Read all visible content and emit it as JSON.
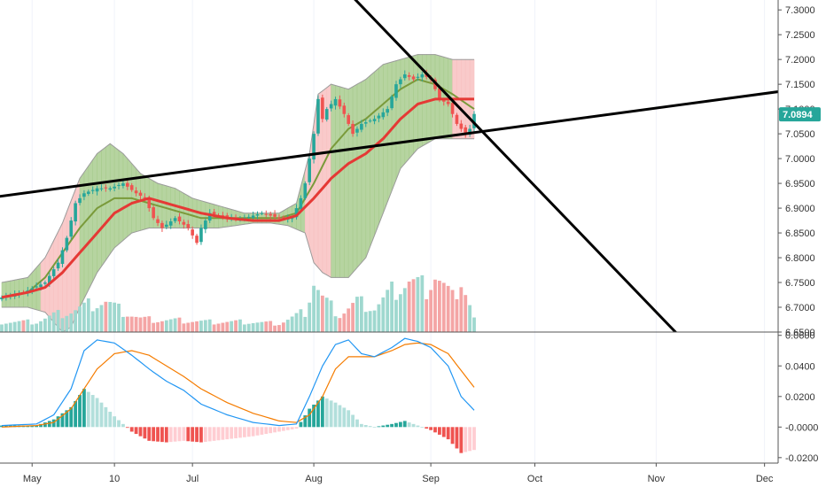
{
  "colors": {
    "up": "#26a69a",
    "down": "#ef5350",
    "up_volume": "#9fd8cf",
    "down_volume": "#f4a5a5",
    "ma": "#e53935",
    "basis": "#7a9a3a",
    "bands_stroke": "#9c9c9c",
    "band_fill_expand": "#f8c1c1",
    "band_fill_contract": "#a9cc8f",
    "macd": "#2196f3",
    "signal": "#f57c00",
    "hist_up_strong": "#26a69a",
    "hist_up_weak": "#b2dfdb",
    "hist_down_strong": "#ef5350",
    "hist_down_weak": "#ffcdd2",
    "trendline": "#000000",
    "price_badge": "#26a69a"
  },
  "price_axis": {
    "ticks": [
      "7.3000",
      "7.2500",
      "7.2000",
      "7.1500",
      "7.1000",
      "7.0500",
      "7.0000",
      "6.9500",
      "6.9000",
      "6.8500",
      "6.8000",
      "6.7500",
      "6.7000",
      "6.6500"
    ],
    "current_price": "7.0894"
  },
  "macd_axis": {
    "ticks": [
      "0.0600",
      "0.0400",
      "0.0200",
      "-0.0000",
      "-0.0200"
    ]
  },
  "time_axis": {
    "labels": [
      "May",
      "10",
      "Jul",
      "Aug",
      "Sep",
      "Oct",
      "Nov",
      "Dec"
    ]
  },
  "chart_data": [
    {
      "type": "candlestick",
      "title": "",
      "ylim": [
        6.65,
        7.32
      ],
      "x_range_bars": [
        0,
        152
      ],
      "x_label_positions": [
        {
          "label": "May",
          "bar": 7
        },
        {
          "label": "10",
          "bar": 26
        },
        {
          "label": "Jul",
          "bar": 44
        },
        {
          "label": "Aug",
          "bar": 72
        },
        {
          "label": "Sep",
          "bar": 99
        },
        {
          "label": "Oct",
          "bar": 123
        },
        {
          "label": "Nov",
          "bar": 151
        },
        {
          "label": "Dec",
          "bar": 176
        }
      ],
      "anchors": {
        "close": [
          [
            0,
            6.72
          ],
          [
            5,
            6.73
          ],
          [
            10,
            6.75
          ],
          [
            13,
            6.79
          ],
          [
            15,
            6.84
          ],
          [
            17,
            6.91
          ],
          [
            19,
            6.93
          ],
          [
            22,
            6.94
          ],
          [
            25,
            6.94
          ],
          [
            28,
            6.95
          ],
          [
            31,
            6.93
          ],
          [
            33,
            6.92
          ],
          [
            35,
            6.88
          ],
          [
            37,
            6.86
          ],
          [
            40,
            6.88
          ],
          [
            43,
            6.86
          ],
          [
            45,
            6.83
          ],
          [
            46,
            6.86
          ],
          [
            48,
            6.89
          ],
          [
            52,
            6.88
          ],
          [
            56,
            6.88
          ],
          [
            60,
            6.89
          ],
          [
            64,
            6.88
          ],
          [
            67,
            6.88
          ],
          [
            69,
            6.92
          ],
          [
            70,
            6.95
          ],
          [
            71,
            7.0
          ],
          [
            72,
            7.05
          ],
          [
            73,
            7.12
          ],
          [
            74,
            7.08
          ],
          [
            75,
            7.1
          ],
          [
            77,
            7.12
          ],
          [
            79,
            7.09
          ],
          [
            81,
            7.05
          ],
          [
            83,
            7.07
          ],
          [
            86,
            7.08
          ],
          [
            89,
            7.1
          ],
          [
            91,
            7.15
          ],
          [
            93,
            7.17
          ],
          [
            95,
            7.16
          ],
          [
            97,
            7.17
          ],
          [
            99,
            7.16
          ],
          [
            101,
            7.12
          ],
          [
            103,
            7.11
          ],
          [
            105,
            7.07
          ],
          [
            107,
            7.05
          ],
          [
            108,
            7.06
          ],
          [
            109,
            7.09
          ]
        ],
        "ma": [
          [
            0,
            6.72
          ],
          [
            6,
            6.73
          ],
          [
            10,
            6.74
          ],
          [
            14,
            6.77
          ],
          [
            18,
            6.81
          ],
          [
            22,
            6.85
          ],
          [
            26,
            6.89
          ],
          [
            30,
            6.91
          ],
          [
            34,
            6.92
          ],
          [
            38,
            6.91
          ],
          [
            42,
            6.9
          ],
          [
            46,
            6.89
          ],
          [
            52,
            6.88
          ],
          [
            58,
            6.875
          ],
          [
            64,
            6.875
          ],
          [
            68,
            6.885
          ],
          [
            72,
            6.92
          ],
          [
            76,
            6.96
          ],
          [
            80,
            6.99
          ],
          [
            84,
            7.01
          ],
          [
            88,
            7.04
          ],
          [
            92,
            7.08
          ],
          [
            96,
            7.11
          ],
          [
            100,
            7.12
          ],
          [
            104,
            7.12
          ],
          [
            109,
            7.12
          ]
        ],
        "basis": [
          [
            0,
            6.72
          ],
          [
            6,
            6.73
          ],
          [
            10,
            6.76
          ],
          [
            14,
            6.81
          ],
          [
            18,
            6.86
          ],
          [
            22,
            6.9
          ],
          [
            26,
            6.92
          ],
          [
            30,
            6.92
          ],
          [
            34,
            6.91
          ],
          [
            38,
            6.9
          ],
          [
            42,
            6.89
          ],
          [
            46,
            6.88
          ],
          [
            52,
            6.88
          ],
          [
            58,
            6.88
          ],
          [
            64,
            6.88
          ],
          [
            68,
            6.89
          ],
          [
            72,
            6.95
          ],
          [
            76,
            7.02
          ],
          [
            80,
            7.06
          ],
          [
            84,
            7.08
          ],
          [
            88,
            7.11
          ],
          [
            92,
            7.14
          ],
          [
            96,
            7.16
          ],
          [
            100,
            7.15
          ],
          [
            104,
            7.13
          ],
          [
            109,
            7.1
          ]
        ],
        "upper": [
          [
            0,
            6.75
          ],
          [
            6,
            6.76
          ],
          [
            10,
            6.8
          ],
          [
            14,
            6.87
          ],
          [
            18,
            6.96
          ],
          [
            22,
            7.01
          ],
          [
            25,
            7.03
          ],
          [
            28,
            7.01
          ],
          [
            32,
            6.97
          ],
          [
            36,
            6.95
          ],
          [
            40,
            6.94
          ],
          [
            44,
            6.92
          ],
          [
            48,
            6.91
          ],
          [
            52,
            6.9
          ],
          [
            56,
            6.89
          ],
          [
            60,
            6.89
          ],
          [
            64,
            6.89
          ],
          [
            68,
            6.91
          ],
          [
            71,
            7.01
          ],
          [
            73,
            7.13
          ],
          [
            76,
            7.15
          ],
          [
            80,
            7.14
          ],
          [
            84,
            7.16
          ],
          [
            88,
            7.19
          ],
          [
            92,
            7.2
          ],
          [
            96,
            7.21
          ],
          [
            100,
            7.21
          ],
          [
            104,
            7.2
          ],
          [
            109,
            7.2
          ]
        ],
        "lower": [
          [
            0,
            6.7
          ],
          [
            6,
            6.7
          ],
          [
            10,
            6.69
          ],
          [
            12,
            6.67
          ],
          [
            14,
            6.65
          ],
          [
            16,
            6.66
          ],
          [
            18,
            6.7
          ],
          [
            22,
            6.77
          ],
          [
            26,
            6.82
          ],
          [
            30,
            6.85
          ],
          [
            34,
            6.86
          ],
          [
            38,
            6.86
          ],
          [
            42,
            6.86
          ],
          [
            46,
            6.86
          ],
          [
            50,
            6.86
          ],
          [
            54,
            6.865
          ],
          [
            58,
            6.87
          ],
          [
            62,
            6.87
          ],
          [
            66,
            6.865
          ],
          [
            70,
            6.85
          ],
          [
            72,
            6.79
          ],
          [
            74,
            6.77
          ],
          [
            76,
            6.76
          ],
          [
            80,
            6.76
          ],
          [
            84,
            6.8
          ],
          [
            88,
            6.89
          ],
          [
            92,
            6.98
          ],
          [
            96,
            7.02
          ],
          [
            100,
            7.04
          ],
          [
            104,
            7.04
          ],
          [
            109,
            7.04
          ]
        ],
        "volume_units": [
          [
            0,
            0.3
          ],
          [
            8,
            0.3
          ],
          [
            12,
            0.5
          ],
          [
            16,
            0.6
          ],
          [
            20,
            0.8
          ],
          [
            24,
            0.9
          ],
          [
            28,
            0.6
          ],
          [
            32,
            0.4
          ],
          [
            36,
            0.35
          ],
          [
            40,
            0.35
          ],
          [
            48,
            0.3
          ],
          [
            56,
            0.3
          ],
          [
            64,
            0.25
          ],
          [
            70,
            0.6
          ],
          [
            72,
            1.5
          ],
          [
            74,
            1.0
          ],
          [
            78,
            0.5
          ],
          [
            82,
            0.9
          ],
          [
            86,
            0.7
          ],
          [
            90,
            1.2
          ],
          [
            94,
            1.5
          ],
          [
            98,
            1.3
          ],
          [
            100,
            1.7
          ],
          [
            104,
            1.0
          ],
          [
            106,
            1.6
          ],
          [
            109,
            0.4
          ]
        ]
      },
      "drawn_lines": [
        {
          "name": "rising-trendline",
          "from": {
            "bar": -2,
            "price": 6.922
          },
          "to": {
            "bar": 180,
            "price": 7.136
          }
        },
        {
          "name": "falling-trendline",
          "from": {
            "bar": 80,
            "price": 7.335
          },
          "to": {
            "bar": 156,
            "price": 6.645
          }
        }
      ]
    },
    {
      "type": "macd",
      "ylim": [
        -0.023,
        0.061
      ],
      "anchors": {
        "macd": [
          [
            0,
            0.001
          ],
          [
            8,
            0.002
          ],
          [
            12,
            0.008
          ],
          [
            16,
            0.025
          ],
          [
            19,
            0.05
          ],
          [
            22,
            0.057
          ],
          [
            26,
            0.055
          ],
          [
            30,
            0.047
          ],
          [
            34,
            0.038
          ],
          [
            38,
            0.03
          ],
          [
            42,
            0.024
          ],
          [
            46,
            0.015
          ],
          [
            52,
            0.008
          ],
          [
            58,
            0.003
          ],
          [
            64,
            0.001
          ],
          [
            68,
            0.002
          ],
          [
            71,
            0.02
          ],
          [
            74,
            0.04
          ],
          [
            77,
            0.054
          ],
          [
            80,
            0.057
          ],
          [
            83,
            0.048
          ],
          [
            86,
            0.046
          ],
          [
            90,
            0.052
          ],
          [
            93,
            0.058
          ],
          [
            96,
            0.056
          ],
          [
            99,
            0.052
          ],
          [
            103,
            0.04
          ],
          [
            106,
            0.02
          ],
          [
            109,
            0.011
          ]
        ],
        "signal": [
          [
            0,
            0.0
          ],
          [
            8,
            0.001
          ],
          [
            12,
            0.003
          ],
          [
            16,
            0.012
          ],
          [
            19,
            0.025
          ],
          [
            22,
            0.038
          ],
          [
            26,
            0.048
          ],
          [
            30,
            0.05
          ],
          [
            34,
            0.047
          ],
          [
            38,
            0.04
          ],
          [
            42,
            0.033
          ],
          [
            46,
            0.025
          ],
          [
            52,
            0.016
          ],
          [
            58,
            0.009
          ],
          [
            64,
            0.004
          ],
          [
            68,
            0.003
          ],
          [
            71,
            0.008
          ],
          [
            74,
            0.02
          ],
          [
            77,
            0.038
          ],
          [
            80,
            0.046
          ],
          [
            83,
            0.046
          ],
          [
            86,
            0.046
          ],
          [
            90,
            0.05
          ],
          [
            93,
            0.054
          ],
          [
            96,
            0.055
          ],
          [
            99,
            0.054
          ],
          [
            103,
            0.048
          ],
          [
            106,
            0.037
          ],
          [
            109,
            0.026
          ]
        ]
      }
    }
  ]
}
